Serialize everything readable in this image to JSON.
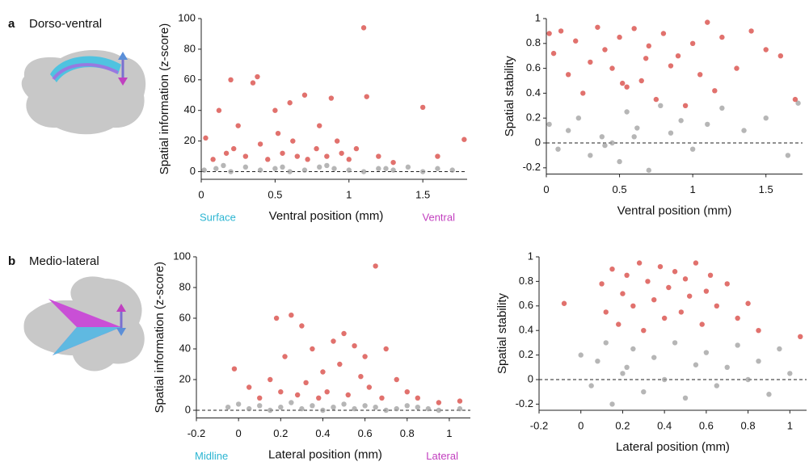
{
  "panels": [
    {
      "label": "a",
      "title": "Dorso-ventral"
    },
    {
      "label": "b",
      "title": "Medio-lateral"
    }
  ],
  "chart_data": [
    {
      "type": "scatter",
      "ylabel": "Spatial information (z-score)",
      "xlabel": "Ventral position (mm)",
      "annotations": [
        {
          "text": "Surface",
          "color": "#2bb5d2"
        },
        {
          "text": "Ventral",
          "color": "#c23fbf"
        }
      ],
      "xlim": [
        0,
        1.8
      ],
      "ylim": [
        -5,
        100
      ],
      "xticks": [
        0,
        0.5,
        1,
        1.5
      ],
      "yticks": [
        0,
        20,
        40,
        60,
        80,
        100
      ],
      "reference_line": 0,
      "series": [
        {
          "color": "#9a9a9a",
          "x": [
            0.02,
            0.1,
            0.2,
            0.3,
            0.4,
            0.5,
            0.6,
            0.7,
            0.8,
            0.9,
            1.0,
            1.1,
            1.2,
            1.3,
            1.4,
            1.5,
            1.6,
            1.7,
            0.15,
            0.55,
            0.85,
            1.25
          ],
          "values": [
            1,
            2,
            0,
            3,
            1,
            2,
            0,
            1,
            3,
            2,
            1,
            0,
            2,
            1,
            3,
            0,
            2,
            1,
            4,
            3,
            4,
            2
          ]
        },
        {
          "color": "#d63a34",
          "x": [
            0.03,
            0.08,
            0.12,
            0.17,
            0.2,
            0.22,
            0.25,
            0.3,
            0.35,
            0.38,
            0.4,
            0.45,
            0.5,
            0.52,
            0.55,
            0.6,
            0.62,
            0.65,
            0.7,
            0.72,
            0.78,
            0.8,
            0.85,
            0.88,
            0.92,
            0.95,
            1.0,
            1.05,
            1.1,
            1.12,
            1.2,
            1.3,
            1.5,
            1.6,
            1.78
          ],
          "values": [
            22,
            8,
            40,
            12,
            60,
            15,
            30,
            10,
            58,
            62,
            18,
            8,
            40,
            25,
            12,
            45,
            20,
            10,
            50,
            8,
            15,
            30,
            10,
            48,
            20,
            12,
            8,
            15,
            94,
            49,
            10,
            6,
            42,
            10,
            21
          ]
        }
      ]
    },
    {
      "type": "scatter",
      "ylabel": "Spatial stability",
      "xlabel": "Ventral position (mm)",
      "xlim": [
        0,
        1.75
      ],
      "ylim": [
        -0.25,
        1
      ],
      "xticks": [
        0,
        0.5,
        1,
        1.5
      ],
      "yticks": [
        -0.2,
        0,
        0.2,
        0.4,
        0.6,
        0.8,
        1
      ],
      "reference_line": 0,
      "series": [
        {
          "color": "#9a9a9a",
          "x": [
            0.02,
            0.08,
            0.15,
            0.22,
            0.3,
            0.38,
            0.45,
            0.5,
            0.55,
            0.62,
            0.7,
            0.78,
            0.85,
            0.92,
            1.0,
            1.1,
            1.2,
            1.35,
            1.5,
            1.65,
            1.72,
            0.4,
            0.6
          ],
          "values": [
            0.15,
            -0.05,
            0.1,
            0.2,
            -0.1,
            0.05,
            0.0,
            -0.15,
            0.25,
            0.12,
            -0.22,
            0.3,
            0.08,
            0.18,
            -0.05,
            0.15,
            0.28,
            0.1,
            0.2,
            -0.1,
            0.32,
            -0.02,
            0.05
          ]
        },
        {
          "color": "#d63a34",
          "x": [
            0.02,
            0.05,
            0.1,
            0.15,
            0.2,
            0.25,
            0.3,
            0.35,
            0.4,
            0.45,
            0.5,
            0.55,
            0.6,
            0.65,
            0.7,
            0.75,
            0.8,
            0.85,
            0.9,
            0.95,
            1.0,
            1.05,
            1.1,
            1.15,
            1.2,
            1.3,
            1.4,
            1.5,
            1.6,
            1.7,
            0.52,
            0.68
          ],
          "values": [
            0.88,
            0.72,
            0.9,
            0.55,
            0.82,
            0.4,
            0.65,
            0.93,
            0.75,
            0.6,
            0.85,
            0.45,
            0.92,
            0.5,
            0.78,
            0.35,
            0.88,
            0.62,
            0.7,
            0.3,
            0.8,
            0.55,
            0.97,
            0.42,
            0.85,
            0.6,
            0.9,
            0.75,
            0.7,
            0.35,
            0.48,
            0.68
          ]
        }
      ]
    },
    {
      "type": "scatter",
      "ylabel": "Spatial information (z-score)",
      "xlabel": "Lateral position (mm)",
      "annotations": [
        {
          "text": "Midline",
          "color": "#2bb5d2"
        },
        {
          "text": "Lateral",
          "color": "#c23fbf"
        }
      ],
      "xlim": [
        -0.2,
        1.1
      ],
      "ylim": [
        -5,
        100
      ],
      "xticks": [
        -0.2,
        0,
        0.2,
        0.4,
        0.6,
        0.8,
        1
      ],
      "yticks": [
        0,
        20,
        40,
        60,
        80,
        100
      ],
      "reference_line": 0,
      "series": [
        {
          "color": "#9a9a9a",
          "x": [
            -0.05,
            0.0,
            0.05,
            0.1,
            0.15,
            0.2,
            0.25,
            0.3,
            0.35,
            0.4,
            0.45,
            0.5,
            0.55,
            0.6,
            0.65,
            0.7,
            0.75,
            0.8,
            0.85,
            0.9,
            0.95,
            1.05
          ],
          "values": [
            2,
            4,
            1,
            3,
            0,
            2,
            5,
            1,
            3,
            0,
            2,
            4,
            1,
            3,
            2,
            0,
            1,
            3,
            2,
            1,
            0,
            1
          ]
        },
        {
          "color": "#d63a34",
          "x": [
            -0.02,
            0.05,
            0.1,
            0.15,
            0.18,
            0.2,
            0.22,
            0.25,
            0.28,
            0.3,
            0.32,
            0.35,
            0.38,
            0.4,
            0.42,
            0.45,
            0.48,
            0.5,
            0.52,
            0.55,
            0.58,
            0.6,
            0.62,
            0.65,
            0.68,
            0.7,
            0.75,
            0.8,
            0.85,
            0.95,
            1.05
          ],
          "values": [
            27,
            15,
            8,
            20,
            60,
            12,
            35,
            62,
            10,
            55,
            18,
            40,
            8,
            25,
            12,
            45,
            30,
            50,
            10,
            42,
            22,
            35,
            15,
            94,
            8,
            40,
            20,
            12,
            8,
            5,
            6
          ]
        }
      ]
    },
    {
      "type": "scatter",
      "ylabel": "Spatial stability",
      "xlabel": "Lateral position (mm)",
      "xlim": [
        -0.2,
        1.08
      ],
      "ylim": [
        -0.25,
        1
      ],
      "xticks": [
        -0.2,
        0,
        0.2,
        0.4,
        0.6,
        0.8,
        1
      ],
      "yticks": [
        -0.2,
        0,
        0.2,
        0.4,
        0.6,
        0.8,
        1
      ],
      "reference_line": 0,
      "series": [
        {
          "color": "#9a9a9a",
          "x": [
            0.0,
            0.05,
            0.08,
            0.12,
            0.15,
            0.2,
            0.25,
            0.3,
            0.35,
            0.4,
            0.45,
            0.5,
            0.55,
            0.6,
            0.65,
            0.7,
            0.75,
            0.8,
            0.85,
            0.9,
            0.95,
            1.0,
            0.22
          ],
          "values": [
            0.2,
            -0.05,
            0.15,
            0.3,
            -0.2,
            0.05,
            0.25,
            -0.1,
            0.18,
            0.0,
            0.3,
            -0.15,
            0.12,
            0.22,
            -0.05,
            0.1,
            0.28,
            0.0,
            0.15,
            -0.12,
            0.25,
            0.05,
            0.1
          ]
        },
        {
          "color": "#d63a34",
          "x": [
            -0.08,
            0.1,
            0.12,
            0.15,
            0.18,
            0.2,
            0.22,
            0.25,
            0.28,
            0.3,
            0.32,
            0.35,
            0.38,
            0.4,
            0.42,
            0.45,
            0.48,
            0.5,
            0.52,
            0.55,
            0.58,
            0.6,
            0.62,
            0.65,
            0.7,
            0.75,
            0.8,
            0.85,
            1.05
          ],
          "values": [
            0.62,
            0.78,
            0.55,
            0.9,
            0.45,
            0.7,
            0.85,
            0.6,
            0.95,
            0.4,
            0.8,
            0.65,
            0.92,
            0.5,
            0.75,
            0.88,
            0.55,
            0.82,
            0.68,
            0.95,
            0.45,
            0.72,
            0.85,
            0.6,
            0.78,
            0.5,
            0.62,
            0.4,
            0.35
          ]
        }
      ]
    }
  ]
}
